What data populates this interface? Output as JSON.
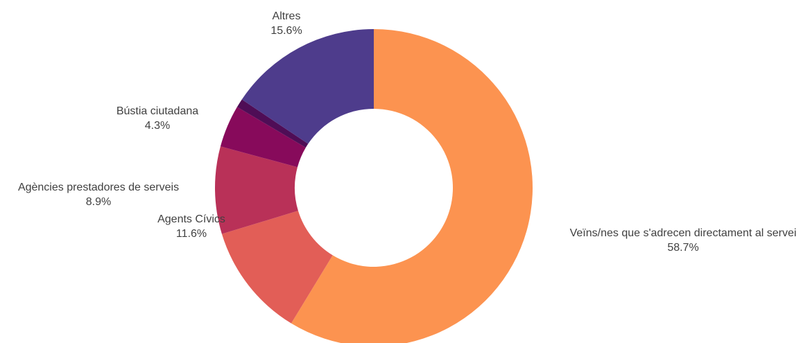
{
  "chart_data": {
    "type": "pie",
    "variant": "donut",
    "title": "",
    "start_angle_deg": 0,
    "direction": "clockwise",
    "slices": [
      {
        "label": "Veïns/nes que s'adrecen directament al servei",
        "value_label": "58.7%",
        "value": 58.7,
        "color": "#fc9350"
      },
      {
        "label": "Agents Cívics",
        "value_label": "11.6%",
        "value": 11.6,
        "color": "#e25e57"
      },
      {
        "label": "Agències prestadores de serveis",
        "value_label": "8.9%",
        "value": 8.9,
        "color": "#b93158"
      },
      {
        "label": "Bústia ciutadana",
        "value_label": "4.3%",
        "value": 4.3,
        "color": "#870a5b"
      },
      {
        "label": "",
        "value_label": "",
        "value": 0.9,
        "color": "#4f0d56"
      },
      {
        "label": "Altres",
        "value_label": "15.6%",
        "value": 15.6,
        "color": "#4e3c8c"
      }
    ]
  }
}
